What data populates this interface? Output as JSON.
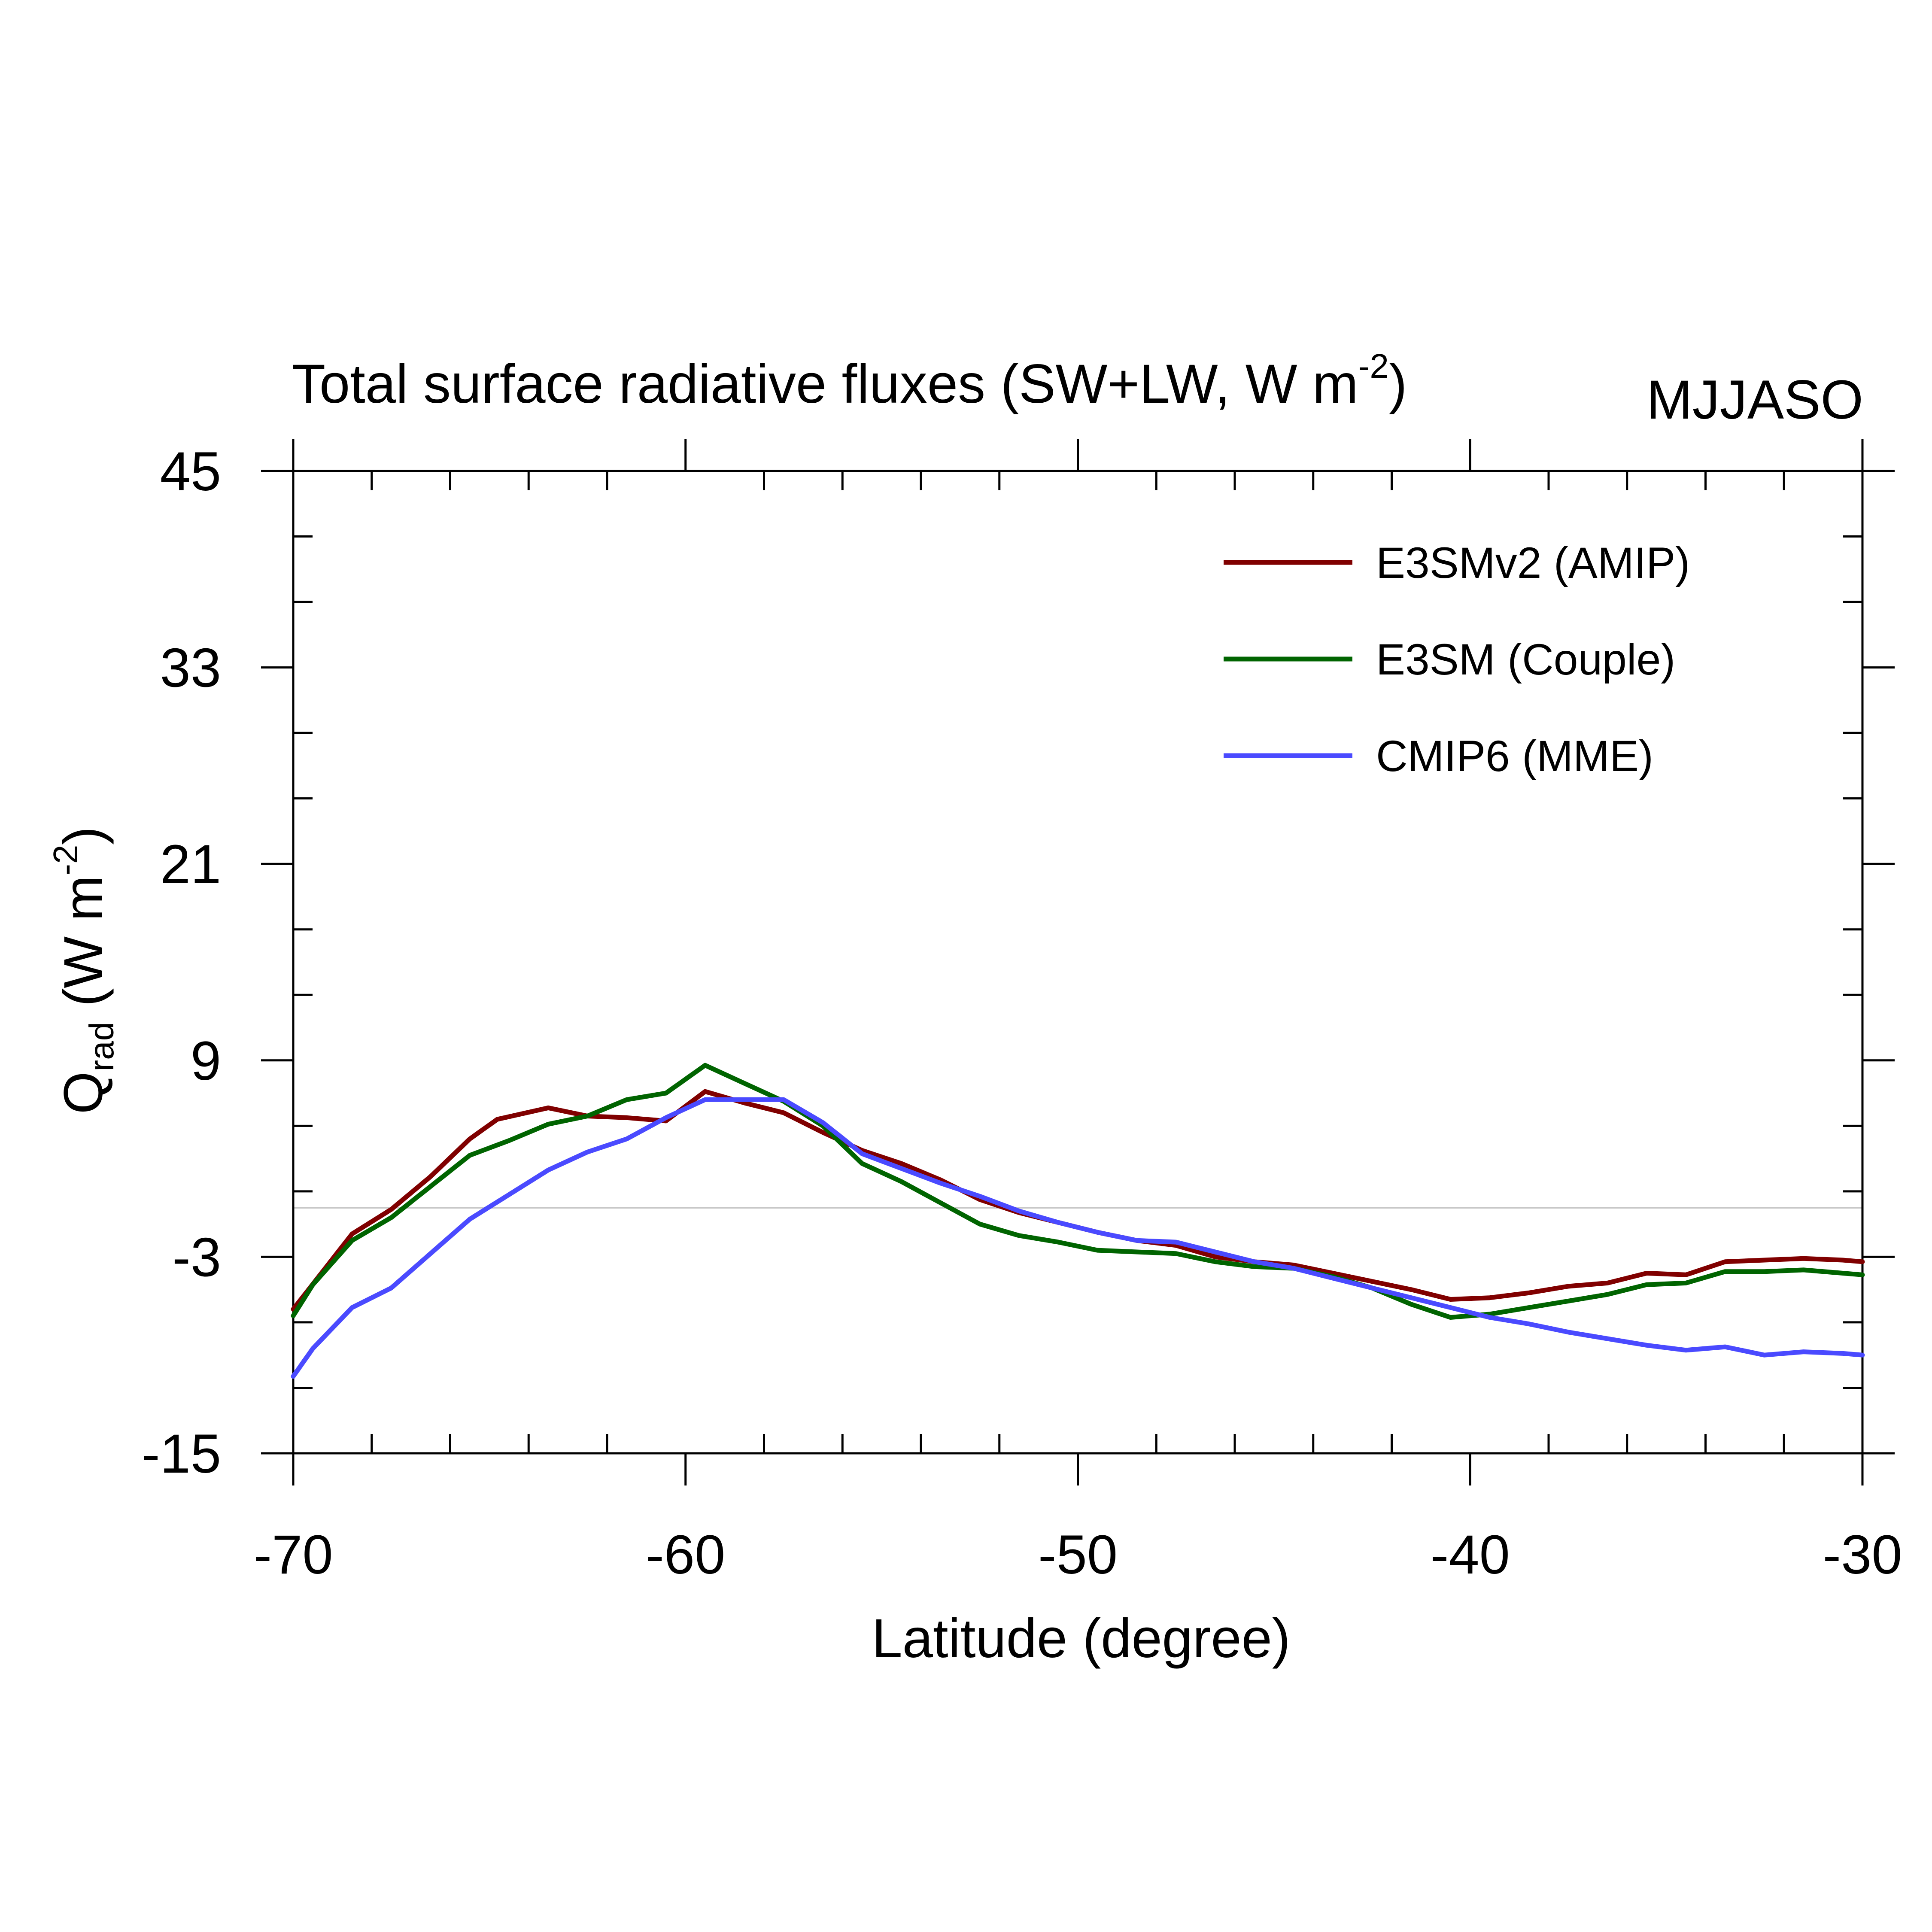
{
  "chart_data": {
    "type": "line",
    "title_main": "Total surface radiative fluxes (SW+LW, W m",
    "title_sup": "-2",
    "title_end": ")",
    "season_label": "MJJASO",
    "xlabel": "Latitude (degree)",
    "ylabel_main": "Q",
    "ylabel_sub": "rad",
    "ylabel_rest": " (W m",
    "ylabel_sup": "-2",
    "ylabel_end": ")",
    "xlim": [
      -70,
      -30
    ],
    "ylim": [
      -15,
      45
    ],
    "x_ticks": [
      -70,
      -60,
      -50,
      -40,
      -30
    ],
    "x_tick_labels": [
      "-70",
      "-60",
      "-50",
      "-40",
      "-30"
    ],
    "x_minor_step": 2,
    "y_ticks": [
      -15,
      -3,
      9,
      21,
      33,
      45
    ],
    "y_tick_labels": [
      "-15",
      "-3",
      "9",
      "21",
      "33",
      "45"
    ],
    "y_minor_step": 4,
    "reference_line_y": 0,
    "grid": false,
    "legend_position": "top-right",
    "series": [
      {
        "name": "E3SMv2 (AMIP)",
        "color": "#800000",
        "x": [
          -70,
          -68.5,
          -67.5,
          -66.5,
          -65.5,
          -64.8,
          -63.5,
          -62.5,
          -61.5,
          -60.5,
          -59.5,
          -58.5,
          -57.5,
          -56.5,
          -55.5,
          -54.5,
          -53.5,
          -52.5,
          -51.5,
          -50.5,
          -49.5,
          -48.5,
          -47.5,
          -46.5,
          -45.5,
          -44.5,
          -43.5,
          -42.5,
          -41.5,
          -40.5,
          -39.5,
          -38.5,
          -37.5,
          -36.5,
          -35.5,
          -34.5,
          -33.5,
          -32.5,
          -31.5,
          -30.5,
          -30
        ],
        "y": [
          -6.2,
          -1.6,
          -0.1,
          1.9,
          4.2,
          5.4,
          6.1,
          5.6,
          5.5,
          5.3,
          7.1,
          6.4,
          5.8,
          4.6,
          3.5,
          2.7,
          1.7,
          0.5,
          -0.3,
          -0.9,
          -1.5,
          -2.0,
          -2.3,
          -3.0,
          -3.3,
          -3.5,
          -4.0,
          -4.5,
          -5.0,
          -5.6,
          -5.5,
          -5.2,
          -4.8,
          -4.6,
          -4.0,
          -4.1,
          -3.3,
          -3.2,
          -3.1,
          -3.2,
          -3.3
        ]
      },
      {
        "name": "E3SM (Couple)",
        "color": "#006400",
        "x": [
          -70,
          -69.5,
          -68.5,
          -67.5,
          -66.5,
          -65.5,
          -64.5,
          -63.5,
          -62.5,
          -61.5,
          -60.5,
          -59.5,
          -58.5,
          -57.5,
          -56.5,
          -55.5,
          -54.5,
          -53.5,
          -52.5,
          -51.5,
          -50.5,
          -49.5,
          -48.5,
          -47.5,
          -46.5,
          -45.5,
          -44.5,
          -43.5,
          -42.5,
          -41.5,
          -40.5,
          -39.5,
          -38.5,
          -37.5,
          -36.5,
          -35.5,
          -34.5,
          -33.5,
          -32.5,
          -31.5,
          -30.5,
          -30
        ],
        "y": [
          -6.6,
          -4.7,
          -2.0,
          -0.6,
          1.3,
          3.2,
          4.1,
          5.1,
          5.6,
          6.6,
          7.0,
          8.7,
          7.6,
          6.5,
          5.0,
          2.7,
          1.6,
          0.3,
          -1.0,
          -1.7,
          -2.1,
          -2.6,
          -2.7,
          -2.8,
          -3.3,
          -3.6,
          -3.7,
          -4.2,
          -4.9,
          -5.9,
          -6.7,
          -6.5,
          -6.1,
          -5.7,
          -5.3,
          -4.7,
          -4.6,
          -3.9,
          -3.9,
          -3.8,
          -4.0,
          -4.1
        ]
      },
      {
        "name": "CMIP6 (MME)",
        "color": "#4a4aff",
        "x": [
          -70,
          -69.5,
          -68.5,
          -67.5,
          -66.5,
          -65.5,
          -64.5,
          -63.5,
          -62.5,
          -61.5,
          -60.5,
          -59.5,
          -58.5,
          -57.5,
          -56.5,
          -55.5,
          -54.5,
          -53.5,
          -52.5,
          -51.5,
          -50.5,
          -49.5,
          -48.5,
          -47.5,
          -46.5,
          -45.5,
          -44.5,
          -43.5,
          -42.5,
          -41.5,
          -40.5,
          -39.5,
          -38.5,
          -37.5,
          -36.5,
          -35.5,
          -34.5,
          -33.5,
          -32.5,
          -31.5,
          -30.5,
          -30
        ],
        "y": [
          -10.3,
          -8.6,
          -6.1,
          -4.9,
          -2.8,
          -0.7,
          0.8,
          2.3,
          3.4,
          4.2,
          5.5,
          6.6,
          6.6,
          6.6,
          5.2,
          3.3,
          2.4,
          1.5,
          0.7,
          -0.2,
          -0.9,
          -1.5,
          -2.0,
          -2.1,
          -2.7,
          -3.3,
          -3.7,
          -4.3,
          -4.9,
          -5.5,
          -6.1,
          -6.7,
          -7.1,
          -7.6,
          -8.0,
          -8.4,
          -8.7,
          -8.5,
          -9.0,
          -8.8,
          -8.9,
          -9.0
        ]
      }
    ]
  }
}
